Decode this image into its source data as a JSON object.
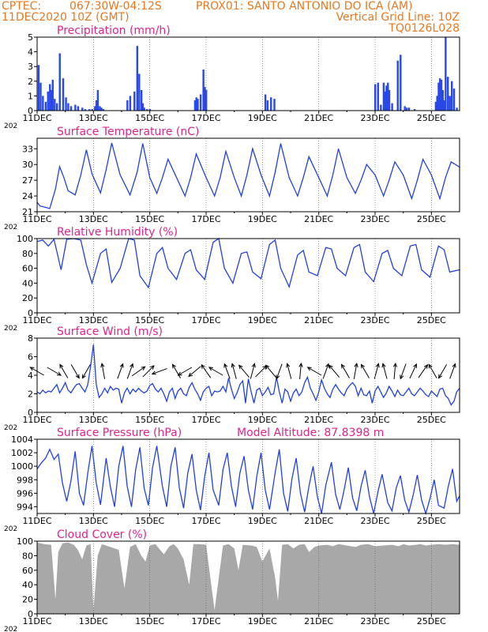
{
  "header": {
    "line1_left": "CPTEC:",
    "line1_loc": "067:30W-04:12S",
    "line1_station": "PROX01: SANTO ANTONIO DO ICA (AM)",
    "line2_left": "11DEC2020 10Z (GMT)",
    "line2_right": "Vertical Grid Line: 10Z",
    "line3_right": "TQ0126L028"
  },
  "x_axis": {
    "tick_labels": [
      "11DEC",
      "13DEC",
      "15DEC",
      "17DEC",
      "19DEC",
      "21DEC",
      "23DEC",
      "25DEC"
    ],
    "tick_days": [
      0,
      2,
      4,
      6,
      8,
      10,
      12,
      14
    ],
    "year_fragment": "202",
    "range_days": [
      0,
      15
    ]
  },
  "colors": {
    "header": "#e8771e",
    "title": "#e0228b",
    "line": "#2040e0",
    "bar": "#2848e8",
    "cloud": "#a8a8a8"
  },
  "panels": [
    {
      "id": "precip",
      "title": "Precipitation (mm/h)",
      "extra": "",
      "ylim": [
        0,
        5
      ],
      "yticks": [
        0,
        1,
        2,
        3,
        4,
        5
      ]
    },
    {
      "id": "temp",
      "title": "Surface Temperature (nC)",
      "extra": "",
      "ylim": [
        21,
        35
      ],
      "yticks": [
        21,
        24,
        27,
        30,
        33
      ]
    },
    {
      "id": "rh",
      "title": "Relative Humidity (%)",
      "extra": "",
      "ylim": [
        0,
        100
      ],
      "yticks": [
        0,
        20,
        40,
        60,
        80,
        100
      ]
    },
    {
      "id": "wind",
      "title": "Surface Wind (m/s)",
      "extra": "",
      "ylim": [
        0,
        8
      ],
      "yticks": [
        0,
        2,
        4,
        6,
        8
      ]
    },
    {
      "id": "press",
      "title": "Surface Pressure (hPa)",
      "extra": "Model Altitude: 87.8398 m",
      "ylim": [
        993,
        1004
      ],
      "yticks": [
        994,
        996,
        998,
        1000,
        1002,
        1004
      ]
    },
    {
      "id": "cloud",
      "title": "Cloud Cover (%)",
      "extra": "",
      "ylim": [
        0,
        100
      ],
      "yticks": [
        0,
        20,
        40,
        60,
        80,
        100
      ]
    }
  ],
  "chart_data": [
    {
      "type": "bar",
      "title": "Precipitation (mm/h)",
      "ylim": [
        0,
        5
      ],
      "x_unit": "days after 11DEC2020 10Z",
      "x": [
        0.05,
        0.12,
        0.2,
        0.3,
        0.38,
        0.45,
        0.5,
        0.55,
        0.62,
        0.7,
        0.8,
        0.92,
        1.02,
        1.1,
        1.2,
        1.35,
        1.45,
        1.6,
        1.7,
        1.85,
        1.95,
        2.05,
        2.1,
        2.15,
        2.22,
        2.28,
        2.35,
        3.2,
        3.3,
        3.45,
        3.55,
        3.62,
        3.7,
        3.75,
        3.8,
        3.9,
        4.0,
        5.6,
        5.65,
        5.7,
        5.8,
        5.9,
        5.95,
        6.0,
        8.1,
        8.18,
        8.3,
        8.42,
        12.0,
        12.1,
        12.2,
        12.3,
        12.35,
        12.4,
        12.45,
        12.5,
        12.6,
        12.8,
        12.9,
        13.05,
        13.12,
        13.2,
        13.4,
        14.15,
        14.2,
        14.25,
        14.3,
        14.35,
        14.4,
        14.45,
        14.5,
        14.58,
        14.65,
        14.72,
        14.8,
        14.9
      ],
      "values": [
        3.1,
        1.9,
        1.0,
        0.6,
        1.3,
        1.8,
        1.4,
        2.1,
        0.8,
        0.5,
        3.9,
        2.2,
        0.9,
        0.5,
        0.3,
        0.4,
        0.3,
        0.2,
        0.1,
        0.1,
        0.1,
        0.3,
        0.7,
        1.4,
        0.3,
        0.2,
        0.1,
        0.7,
        1.0,
        1.3,
        4.4,
        2.5,
        1.4,
        0.5,
        0.2,
        0.1,
        0.1,
        0.7,
        0.9,
        0.8,
        1.1,
        2.8,
        1.6,
        1.4,
        1.1,
        0.7,
        0.9,
        0.8,
        1.8,
        1.9,
        0.4,
        1.9,
        1.3,
        1.7,
        1.9,
        1.4,
        0.5,
        3.4,
        3.8,
        0.3,
        0.2,
        0.2,
        0.1,
        0.6,
        1.0,
        1.9,
        2.2,
        2.1,
        1.4,
        0.7,
        5.0,
        2.3,
        1.0,
        2.0,
        1.5,
        0.2
      ]
    },
    {
      "type": "line",
      "title": "Surface Temperature (nC)",
      "ylim": [
        21,
        35
      ],
      "x_unit": "days after 11DEC2020 10Z",
      "x": [
        0,
        0.1,
        0.25,
        0.45,
        0.65,
        0.8,
        0.95,
        1.1,
        1.35,
        1.55,
        1.75,
        1.95,
        2.25,
        2.45,
        2.65,
        2.95,
        3.3,
        3.55,
        3.75,
        4.0,
        4.25,
        4.45,
        4.65,
        4.95,
        5.25,
        5.45,
        5.65,
        6.0,
        6.3,
        6.5,
        6.7,
        7.0,
        7.25,
        7.45,
        7.65,
        7.95,
        8.25,
        8.45,
        8.65,
        8.95,
        9.25,
        9.45,
        9.65,
        10.0,
        10.3,
        10.5,
        10.7,
        11.0,
        11.3,
        11.5,
        11.7,
        12.0,
        12.3,
        12.5,
        12.7,
        13.0,
        13.3,
        13.5,
        13.7,
        14.0,
        14.3,
        14.5,
        14.7,
        15.0
      ],
      "values": [
        22.8,
        22.1,
        21.9,
        21.6,
        25.3,
        29.6,
        27.5,
        25.0,
        24.2,
        28.0,
        32.8,
        28.2,
        24.6,
        29.0,
        34.1,
        28.0,
        24.2,
        28.5,
        34.0,
        27.5,
        24.5,
        27.5,
        31.0,
        27.5,
        24.0,
        27.5,
        32.0,
        27.5,
        24.0,
        27.5,
        32.5,
        27.5,
        24.0,
        28.0,
        33.0,
        28.0,
        24.0,
        28.5,
        34.0,
        27.5,
        24.0,
        27.5,
        31.5,
        27.5,
        24.0,
        28.0,
        33.0,
        27.5,
        24.5,
        27.0,
        30.0,
        28.0,
        24.0,
        27.0,
        30.5,
        28.0,
        23.5,
        27.0,
        31.0,
        28.0,
        23.5,
        27.5,
        30.5,
        29.5
      ]
    },
    {
      "type": "line",
      "title": "Relative Humidity (%)",
      "ylim": [
        0,
        100
      ],
      "x_unit": "days after 11DEC2020 10Z",
      "x": [
        0,
        0.2,
        0.4,
        0.6,
        0.85,
        1.05,
        1.3,
        1.55,
        1.75,
        1.95,
        2.25,
        2.45,
        2.65,
        2.95,
        3.25,
        3.45,
        3.65,
        3.95,
        4.25,
        4.45,
        4.65,
        4.95,
        5.25,
        5.45,
        5.65,
        5.95,
        6.25,
        6.45,
        6.65,
        6.95,
        7.25,
        7.45,
        7.65,
        7.95,
        8.25,
        8.45,
        8.65,
        8.95,
        9.25,
        9.45,
        9.65,
        9.95,
        10.25,
        10.45,
        10.65,
        10.95,
        11.25,
        11.45,
        11.65,
        11.95,
        12.25,
        12.45,
        12.65,
        12.95,
        13.25,
        13.45,
        13.65,
        13.95,
        14.25,
        14.45,
        14.65,
        15.0
      ],
      "values": [
        96,
        98,
        90,
        99,
        58,
        99,
        100,
        98,
        65,
        40,
        80,
        86,
        41,
        60,
        100,
        98,
        50,
        34,
        80,
        88,
        60,
        45,
        80,
        85,
        58,
        45,
        95,
        100,
        60,
        40,
        80,
        82,
        55,
        46,
        92,
        98,
        60,
        35,
        78,
        84,
        55,
        50,
        88,
        86,
        60,
        50,
        88,
        92,
        55,
        42,
        80,
        84,
        60,
        50,
        90,
        92,
        58,
        48,
        90,
        85,
        55,
        58
      ]
    },
    {
      "type": "line",
      "title": "Surface Wind (m/s)",
      "ylim": [
        0,
        8
      ],
      "x_unit": "days after 11DEC2020 10Z",
      "x": [
        0,
        0.1,
        0.2,
        0.3,
        0.4,
        0.5,
        0.6,
        0.7,
        0.8,
        0.9,
        1.0,
        1.1,
        1.2,
        1.3,
        1.4,
        1.5,
        1.6,
        1.7,
        1.8,
        1.9,
        2.0,
        2.1,
        2.2,
        2.3,
        2.4,
        2.5,
        2.6,
        2.7,
        2.8,
        2.9,
        3.0,
        3.1,
        3.2,
        3.3,
        3.4,
        3.5,
        3.6,
        3.7,
        3.8,
        3.9,
        4.0,
        4.1,
        4.2,
        4.3,
        4.4,
        4.5,
        4.6,
        4.7,
        4.8,
        4.9,
        5.0,
        5.1,
        5.2,
        5.3,
        5.4,
        5.5,
        5.6,
        5.7,
        5.8,
        5.9,
        6.0,
        6.1,
        6.2,
        6.3,
        6.4,
        6.5,
        6.6,
        6.7,
        6.8,
        6.9,
        7.0,
        7.1,
        7.2,
        7.3,
        7.4,
        7.5,
        7.6,
        7.7,
        7.8,
        7.9,
        8.0,
        8.1,
        8.2,
        8.3,
        8.4,
        8.5,
        8.6,
        8.7,
        8.8,
        8.9,
        9.0,
        9.1,
        9.2,
        9.3,
        9.4,
        9.5,
        9.6,
        9.7,
        9.8,
        9.9,
        10.0,
        10.1,
        10.2,
        10.3,
        10.4,
        10.5,
        10.6,
        10.7,
        10.8,
        10.9,
        11.0,
        11.1,
        11.2,
        11.3,
        11.4,
        11.5,
        11.6,
        11.7,
        11.8,
        11.9,
        12.0,
        12.1,
        12.2,
        12.3,
        12.4,
        12.5,
        12.6,
        12.7,
        12.8,
        12.9,
        13.0,
        13.1,
        13.2,
        13.3,
        13.4,
        13.5,
        13.6,
        13.7,
        13.8,
        13.9,
        14.0,
        14.1,
        14.2,
        14.3,
        14.4,
        14.5,
        14.6,
        14.7,
        14.8,
        14.9,
        15.0
      ],
      "values": [
        2.2,
        2.0,
        2.4,
        2.1,
        2.3,
        2.2,
        2.6,
        3.0,
        2.1,
        2.6,
        3.2,
        2.4,
        2.1,
        2.6,
        3.0,
        3.1,
        2.6,
        2.2,
        3.0,
        5.0,
        7.3,
        3.0,
        1.6,
        2.0,
        2.6,
        2.1,
        2.8,
        2.4,
        2.6,
        2.5,
        1.0,
        2.1,
        2.6,
        2.0,
        2.5,
        2.2,
        2.6,
        2.3,
        2.1,
        2.3,
        2.9,
        3.1,
        2.5,
        2.2,
        2.6,
        2.0,
        1.2,
        2.2,
        2.6,
        1.5,
        2.3,
        2.6,
        2.0,
        1.8,
        2.7,
        3.2,
        2.5,
        2.0,
        1.3,
        2.2,
        2.6,
        2.8,
        1.8,
        2.3,
        2.2,
        2.3,
        2.8,
        2.2,
        3.7,
        2.5,
        1.5,
        2.1,
        3.0,
        3.4,
        1.0,
        3.6,
        2.2,
        1.0,
        2.4,
        2.6,
        1.8,
        2.2,
        2.7,
        1.9,
        2.0,
        3.8,
        2.2,
        1.0,
        2.5,
        2.2,
        1.2,
        2.1,
        2.5,
        1.8,
        2.2,
        3.2,
        3.8,
        2.6,
        2.0,
        1.3,
        2.2,
        3.5,
        2.6,
        2.0,
        1.6,
        2.5,
        3.0,
        2.5,
        2.1,
        1.8,
        2.5,
        2.9,
        3.2,
        2.8,
        1.8,
        2.6,
        1.9,
        1.8,
        2.3,
        1.0,
        2.3,
        2.8,
        2.2,
        1.6,
        2.1,
        2.8,
        2.3,
        1.7,
        2.4,
        1.9,
        1.8,
        2.2,
        2.6,
        2.0,
        1.8,
        2.2,
        2.6,
        2.3,
        1.9,
        1.7,
        2.3,
        2.0,
        1.7,
        2.5,
        2.6,
        1.8,
        1.5,
        0.8,
        1.2,
        2.2,
        2.6
      ]
    },
    {
      "type": "line",
      "title": "Surface Pressure (hPa)",
      "ylim": [
        993,
        1004
      ],
      "x_unit": "days after 11DEC2020 10Z",
      "annotation": "Model Altitude: 87.8398 m",
      "x": [
        0,
        0.15,
        0.3,
        0.45,
        0.6,
        0.75,
        0.9,
        1.05,
        1.2,
        1.35,
        1.5,
        1.65,
        1.8,
        1.95,
        2.1,
        2.25,
        2.45,
        2.6,
        2.75,
        2.9,
        3.05,
        3.2,
        3.35,
        3.5,
        3.65,
        3.8,
        3.95,
        4.1,
        4.25,
        4.45,
        4.6,
        4.75,
        4.9,
        5.05,
        5.2,
        5.35,
        5.5,
        5.65,
        5.8,
        5.95,
        6.1,
        6.25,
        6.45,
        6.6,
        6.75,
        6.9,
        7.05,
        7.2,
        7.35,
        7.5,
        7.65,
        7.8,
        7.95,
        8.1,
        8.25,
        8.45,
        8.6,
        8.75,
        8.9,
        9.05,
        9.2,
        9.35,
        9.5,
        9.65,
        9.8,
        9.95,
        10.1,
        10.25,
        10.45,
        10.6,
        10.75,
        10.9,
        11.05,
        11.2,
        11.35,
        11.5,
        11.65,
        11.8,
        11.95,
        12.1,
        12.25,
        12.45,
        12.6,
        12.75,
        12.9,
        13.05,
        13.2,
        13.35,
        13.5,
        13.65,
        13.8,
        13.95,
        14.1,
        14.25,
        14.45,
        14.6,
        14.75,
        14.9,
        15.0
      ],
      "values": [
        999.6,
        1000.5,
        1001.2,
        1002.5,
        1001.0,
        1001.8,
        997.5,
        994.8,
        997.8,
        1002.2,
        996.0,
        994.2,
        999.0,
        1003.0,
        997.5,
        994.3,
        1001.2,
        997.0,
        994.0,
        1000.0,
        1003.0,
        997.0,
        994.0,
        999.5,
        1002.8,
        996.8,
        994.2,
        999.8,
        1003.0,
        997.0,
        994.0,
        1000.0,
        1002.8,
        996.8,
        993.8,
        999.0,
        1001.8,
        996.5,
        993.5,
        998.5,
        1002.0,
        996.5,
        994.2,
        999.5,
        1002.0,
        997.0,
        994.0,
        999.0,
        1001.5,
        996.5,
        993.6,
        998.5,
        1002.0,
        996.5,
        993.6,
        999.0,
        1002.5,
        996.0,
        993.3,
        998.2,
        1001.2,
        996.0,
        993.2,
        997.0,
        1000.0,
        995.5,
        993.0,
        997.2,
        1000.6,
        995.8,
        993.6,
        996.5,
        999.8,
        995.3,
        993.4,
        997.0,
        999.4,
        995.5,
        993.0,
        996.2,
        998.8,
        994.6,
        993.4,
        996.8,
        998.6,
        995.0,
        993.2,
        995.7,
        998.7,
        995.0,
        993.0,
        995.2,
        998.0,
        994.2,
        993.8,
        997.0,
        999.6,
        994.8,
        995.6
      ]
    },
    {
      "type": "bar",
      "title": "Cloud Cover (%)",
      "ylim": [
        0,
        100
      ],
      "x_unit": "days after 11DEC2020 10Z",
      "x": [
        0,
        0.25,
        0.5,
        0.65,
        0.75,
        0.9,
        1.1,
        1.3,
        1.45,
        1.6,
        1.75,
        1.9,
        2.0,
        2.15,
        2.3,
        2.6,
        2.9,
        3.1,
        3.3,
        3.5,
        3.7,
        3.85,
        4.0,
        4.2,
        4.5,
        4.7,
        4.85,
        5.0,
        5.2,
        5.4,
        5.55,
        5.75,
        6.0,
        6.3,
        6.6,
        6.8,
        7.0,
        7.15,
        7.3,
        7.6,
        7.8,
        8.0,
        8.25,
        8.45,
        8.55,
        8.7,
        8.9,
        9.1,
        9.3,
        9.5,
        9.65,
        9.85,
        10.0,
        10.3,
        10.5,
        10.7,
        11.0,
        11.3,
        11.5,
        11.75,
        12.0,
        12.3,
        12.6,
        12.85,
        13.0,
        13.2,
        13.45,
        13.6,
        13.8,
        14.0,
        14.25,
        14.5,
        14.75,
        15.0
      ],
      "values": [
        98,
        96,
        95,
        20,
        85,
        97,
        98,
        95,
        88,
        75,
        94,
        96,
        5,
        80,
        96,
        92,
        88,
        35,
        92,
        96,
        80,
        72,
        94,
        96,
        82,
        93,
        96,
        90,
        75,
        40,
        96,
        96,
        95,
        5,
        94,
        96,
        90,
        60,
        95,
        94,
        92,
        72,
        90,
        50,
        18,
        95,
        96,
        90,
        95,
        96,
        85,
        92,
        94,
        95,
        93,
        96,
        94,
        92,
        95,
        96,
        93,
        94,
        95,
        93,
        96,
        94,
        95,
        96,
        94,
        95,
        96,
        95,
        96,
        95
      ]
    }
  ],
  "wind_vectors": [
    {
      "x": 0.0,
      "dir": 300
    },
    {
      "x": 0.6,
      "dir": 120
    },
    {
      "x": 0.95,
      "dir": 330
    },
    {
      "x": 1.35,
      "dir": 150
    },
    {
      "x": 1.75,
      "dir": 210
    },
    {
      "x": 2.35,
      "dir": 350
    },
    {
      "x": 2.95,
      "dir": 20
    },
    {
      "x": 3.3,
      "dir": 20
    },
    {
      "x": 3.6,
      "dir": 55
    },
    {
      "x": 3.95,
      "dir": 45
    },
    {
      "x": 4.35,
      "dir": 250
    },
    {
      "x": 4.95,
      "dir": 330
    },
    {
      "x": 5.25,
      "dir": 240
    },
    {
      "x": 5.6,
      "dir": 230
    },
    {
      "x": 6.0,
      "dir": 325
    },
    {
      "x": 6.35,
      "dir": 300
    },
    {
      "x": 6.75,
      "dir": 340
    },
    {
      "x": 7.0,
      "dir": 345
    },
    {
      "x": 7.35,
      "dir": 320
    },
    {
      "x": 7.65,
      "dir": 15
    },
    {
      "x": 7.95,
      "dir": 45
    },
    {
      "x": 8.3,
      "dir": 320
    },
    {
      "x": 8.6,
      "dir": 200
    },
    {
      "x": 8.95,
      "dir": 345
    },
    {
      "x": 9.35,
      "dir": 5
    },
    {
      "x": 9.85,
      "dir": 300
    },
    {
      "x": 10.25,
      "dir": 20
    },
    {
      "x": 10.55,
      "dir": 320
    },
    {
      "x": 10.95,
      "dir": 330
    },
    {
      "x": 11.3,
      "dir": 10
    },
    {
      "x": 11.65,
      "dir": 330
    },
    {
      "x": 12.05,
      "dir": 15
    },
    {
      "x": 12.35,
      "dir": 345
    },
    {
      "x": 12.7,
      "dir": 5
    },
    {
      "x": 13.0,
      "dir": 200
    },
    {
      "x": 13.35,
      "dir": 25
    },
    {
      "x": 13.7,
      "dir": 35
    },
    {
      "x": 14.05,
      "dir": 330
    },
    {
      "x": 14.4,
      "dir": 210
    },
    {
      "x": 14.75,
      "dir": 20
    }
  ]
}
